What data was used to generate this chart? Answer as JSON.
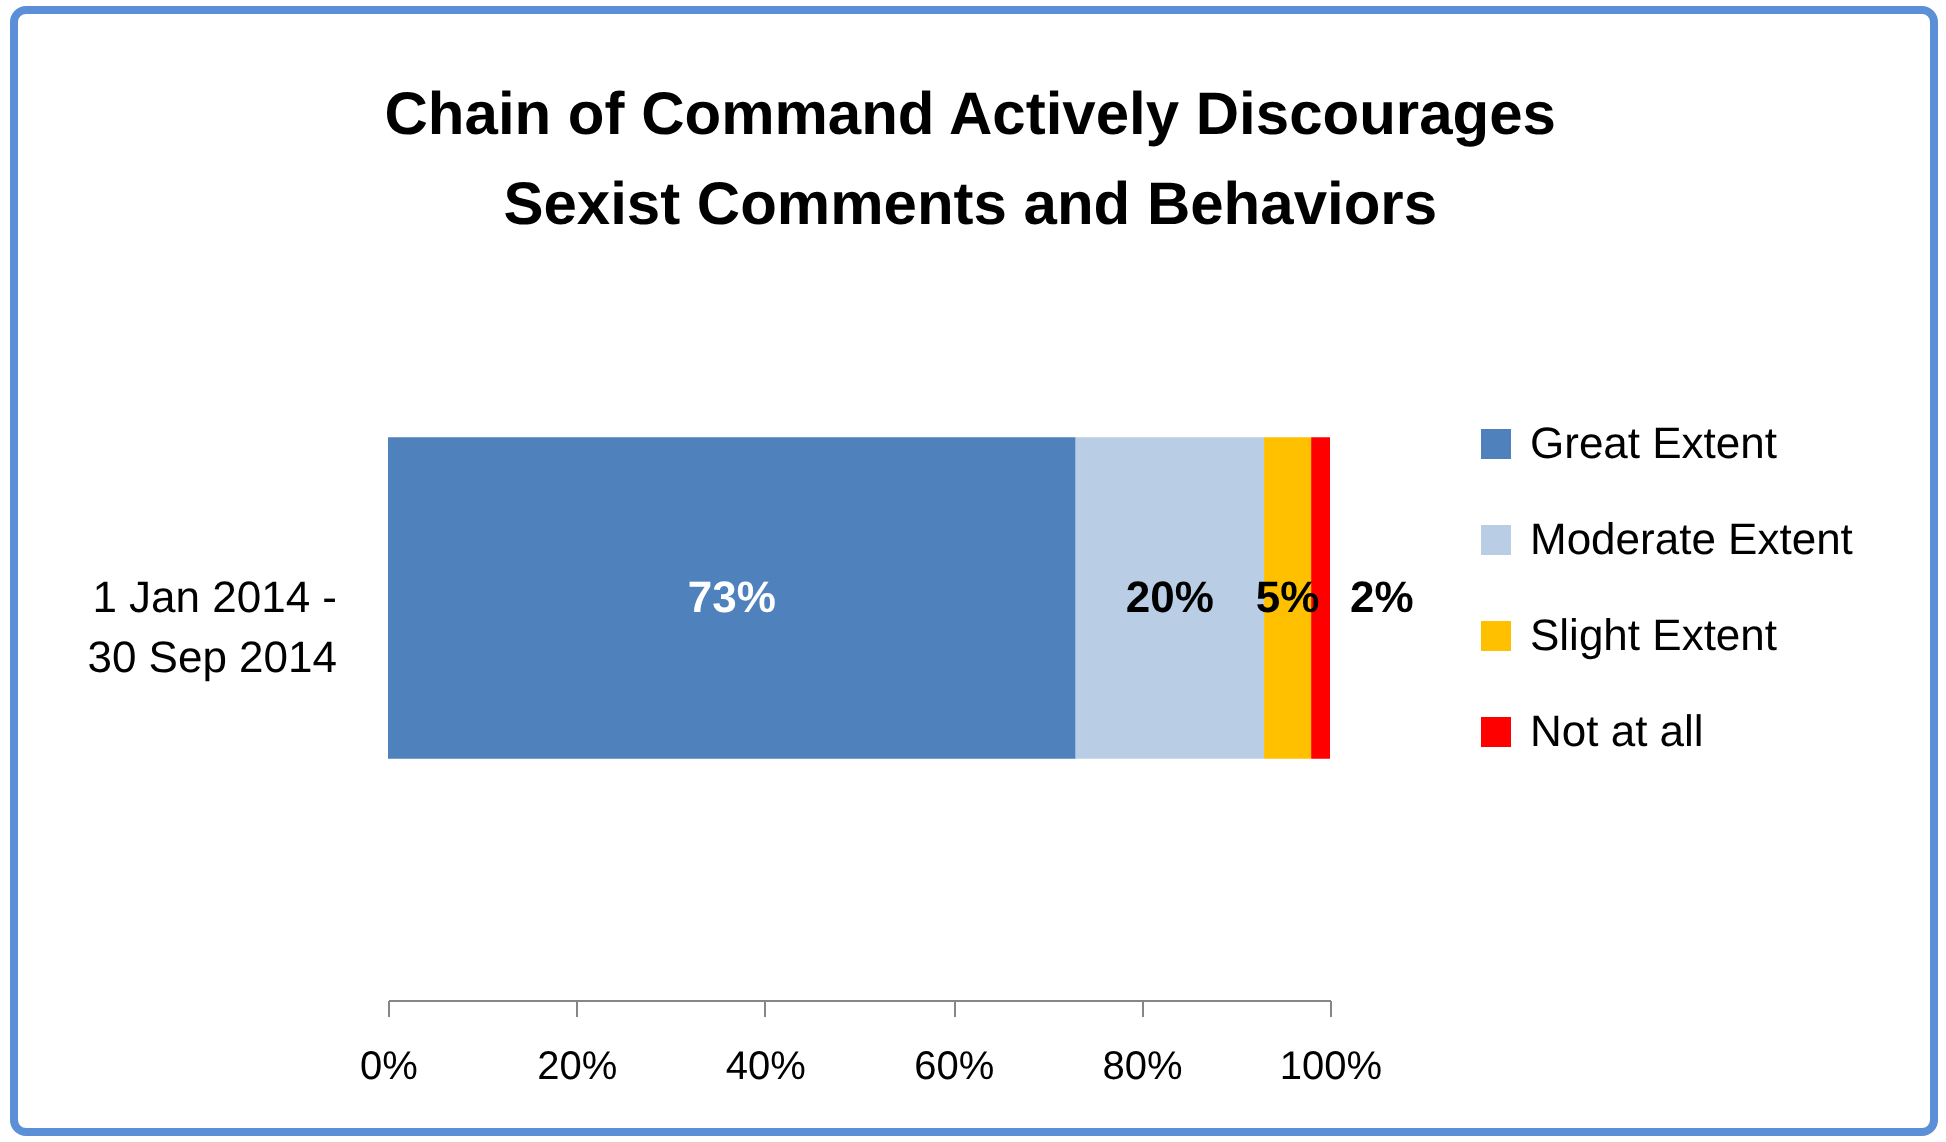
{
  "chart_data": {
    "type": "bar",
    "title": "Chain of Command Actively Discourages Sexist Comments and Behaviors",
    "categories": [
      "1 Jan 2014 - 30 Sep 2014"
    ],
    "orientation": "horizontal",
    "stacked": true,
    "series": [
      {
        "name": "Great Extent",
        "color": "#4f81bd",
        "values": [
          73
        ],
        "value_labels": [
          "73%"
        ]
      },
      {
        "name": "Moderate Extent",
        "color": "#b9cde5",
        "values": [
          20
        ],
        "value_labels": [
          "20%"
        ]
      },
      {
        "name": "Slight Extent",
        "color": "#ffc000",
        "values": [
          5
        ],
        "value_labels": [
          "5%"
        ]
      },
      {
        "name": "Not at all",
        "color": "#ff0000",
        "values": [
          2
        ],
        "value_labels": [
          "2%"
        ]
      }
    ],
    "xlim": [
      0,
      100
    ],
    "xticks": [
      {
        "value": 0,
        "label": "0%"
      },
      {
        "value": 20,
        "label": "20%"
      },
      {
        "value": 40,
        "label": "40%"
      },
      {
        "value": 60,
        "label": "60%"
      },
      {
        "value": 80,
        "label": "80%"
      },
      {
        "value": 100,
        "label": "100%"
      }
    ],
    "legend": "right"
  }
}
